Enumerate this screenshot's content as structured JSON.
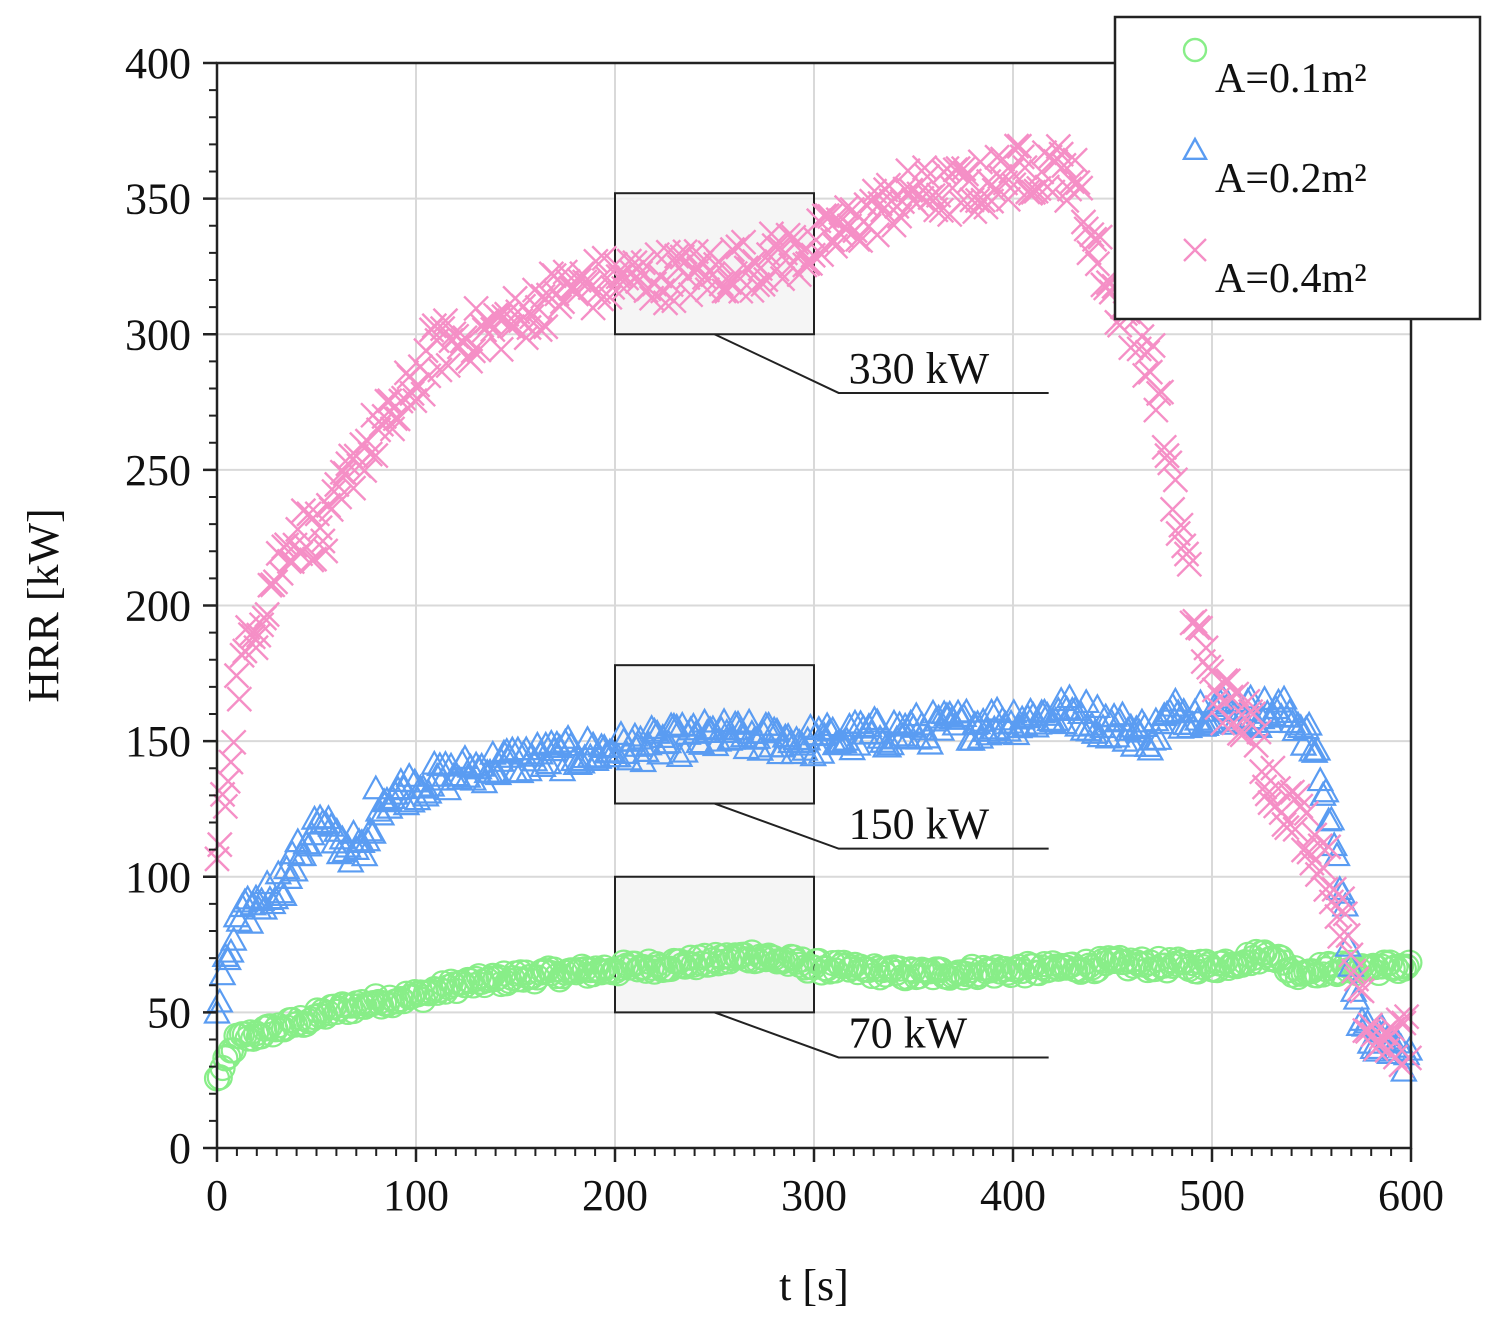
{
  "chart_data": {
    "type": "scatter",
    "title": "",
    "xlabel": "t [s]",
    "ylabel": "HRR [kW]",
    "xlim": [
      0,
      600
    ],
    "ylim": [
      0,
      400
    ],
    "xticks": [
      0,
      100,
      200,
      300,
      400,
      500,
      600
    ],
    "yticks": [
      0,
      50,
      100,
      150,
      200,
      250,
      300,
      350,
      400
    ],
    "grid": true,
    "legend_position": "top-right",
    "colors": {
      "a01": "#88ee88",
      "a02": "#5a9cf2",
      "a04": "#f58fc6",
      "grid": "#d9d9d9",
      "box_fill": "#f2f2f2"
    },
    "series": [
      {
        "name": "A=0.1m²",
        "marker": "circle",
        "color_key": "a01",
        "profile": [
          [
            0,
            25
          ],
          [
            5,
            32
          ],
          [
            10,
            40
          ],
          [
            20,
            42
          ],
          [
            40,
            46
          ],
          [
            60,
            51
          ],
          [
            80,
            54
          ],
          [
            100,
            56
          ],
          [
            120,
            60
          ],
          [
            150,
            63
          ],
          [
            200,
            66
          ],
          [
            250,
            69
          ],
          [
            270,
            71
          ],
          [
            300,
            67
          ],
          [
            350,
            64
          ],
          [
            380,
            65
          ],
          [
            420,
            66
          ],
          [
            450,
            68
          ],
          [
            500,
            67
          ],
          [
            520,
            70
          ],
          [
            530,
            72
          ],
          [
            540,
            65
          ],
          [
            560,
            66
          ],
          [
            600,
            67
          ]
        ]
      },
      {
        "name": "A=0.2m²",
        "marker": "triangle",
        "color_key": "a02",
        "profile": [
          [
            0,
            50
          ],
          [
            5,
            68
          ],
          [
            10,
            82
          ],
          [
            20,
            90
          ],
          [
            35,
            100
          ],
          [
            50,
            120
          ],
          [
            60,
            114
          ],
          [
            75,
            108
          ],
          [
            80,
            128
          ],
          [
            100,
            134
          ],
          [
            120,
            138
          ],
          [
            150,
            143
          ],
          [
            200,
            147
          ],
          [
            250,
            152
          ],
          [
            300,
            150
          ],
          [
            350,
            154
          ],
          [
            400,
            158
          ],
          [
            430,
            161
          ],
          [
            450,
            156
          ],
          [
            470,
            152
          ],
          [
            480,
            160
          ],
          [
            500,
            162
          ],
          [
            540,
            160
          ],
          [
            550,
            150
          ],
          [
            560,
            120
          ],
          [
            570,
            70
          ],
          [
            575,
            42
          ],
          [
            590,
            38
          ],
          [
            600,
            32
          ]
        ]
      },
      {
        "name": "A=0.4m²",
        "marker": "cross",
        "color_key": "a04",
        "profile": [
          [
            0,
            105
          ],
          [
            5,
            135
          ],
          [
            10,
            170
          ],
          [
            20,
            195
          ],
          [
            30,
            213
          ],
          [
            40,
            228
          ],
          [
            55,
            225
          ],
          [
            70,
            255
          ],
          [
            90,
            270
          ],
          [
            110,
            295
          ],
          [
            130,
            300
          ],
          [
            150,
            305
          ],
          [
            170,
            315
          ],
          [
            200,
            320
          ],
          [
            250,
            323
          ],
          [
            280,
            328
          ],
          [
            300,
            332
          ],
          [
            330,
            345
          ],
          [
            350,
            352
          ],
          [
            380,
            353
          ],
          [
            400,
            360
          ],
          [
            420,
            362
          ],
          [
            430,
            358
          ],
          [
            440,
            335
          ],
          [
            450,
            315
          ],
          [
            470,
            290
          ],
          [
            480,
            245
          ],
          [
            490,
            200
          ],
          [
            500,
            170
          ],
          [
            520,
            155
          ],
          [
            530,
            135
          ],
          [
            550,
            115
          ],
          [
            560,
            100
          ],
          [
            570,
            70
          ],
          [
            580,
            45
          ],
          [
            600,
            38
          ]
        ]
      }
    ],
    "annotations": [
      {
        "label": "330 kW",
        "box_x": [
          200,
          300
        ],
        "box_y": [
          300,
          352
        ],
        "text_x": 335,
        "text_y": 285
      },
      {
        "label": "150 kW",
        "box_x": [
          200,
          300
        ],
        "box_y": [
          127,
          178
        ],
        "text_x": 335,
        "text_y": 117
      },
      {
        "label": "70 kW",
        "box_x": [
          200,
          300
        ],
        "box_y": [
          50,
          100
        ],
        "text_x": 335,
        "text_y": 40
      }
    ]
  }
}
